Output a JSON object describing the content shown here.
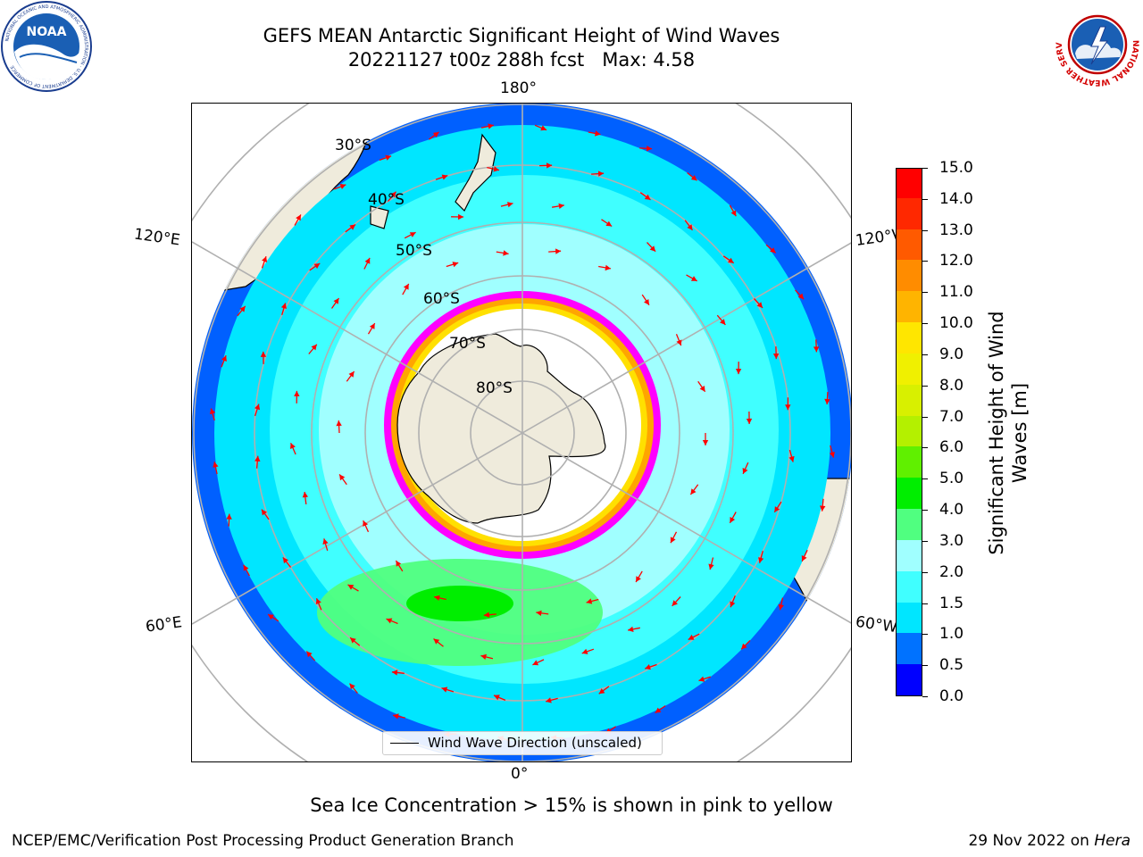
{
  "title": {
    "line1": "GEFS MEAN Antarctic Significant Height of Wind Waves",
    "line2": "20221127 t00z 288h fcst   Max: 4.58"
  },
  "map": {
    "projection": "south-polar stereographic",
    "longitude_labels": {
      "top": "180°",
      "bottom": "0°",
      "upper_left": "120°E",
      "upper_right": "120°W",
      "lower_left": "60°E",
      "lower_right": "60°W"
    },
    "latitude_labels": [
      "30°S",
      "40°S",
      "50°S",
      "60°S",
      "70°S",
      "80°S"
    ],
    "legend_entry": "Wind Wave Direction (unscaled)",
    "arrow_color": "#ff0000",
    "land_color": "#efebdc",
    "ice_color": "#ffffff",
    "ice_edge_colors": [
      "#ff00ff",
      "#ffa500",
      "#ffe000"
    ]
  },
  "colorbar": {
    "label_line1": "Significant Height of Wind",
    "label_line2": "Waves [m]",
    "ticks": [
      "0.0",
      "0.5",
      "1.0",
      "1.5",
      "2.0",
      "3.0",
      "4.0",
      "5.0",
      "6.0",
      "7.0",
      "8.0",
      "9.0",
      "10.0",
      "11.0",
      "12.0",
      "13.0",
      "14.0",
      "15.0"
    ],
    "colors": [
      "#0000ff",
      "#0072ff",
      "#00e6ff",
      "#40ffff",
      "#a0ffff",
      "#50ff80",
      "#00ee00",
      "#60f000",
      "#b4f000",
      "#d8f000",
      "#f0f000",
      "#ffe600",
      "#ffb400",
      "#ff8c00",
      "#ff5a00",
      "#ff2800",
      "#ff0000"
    ]
  },
  "subtitle": "Sea Ice Concentration > 15% is shown in pink to yellow",
  "footer": {
    "left": "NCEP/EMC/Verification Post Processing Product Generation Branch",
    "right_date": "29 Nov 2022 on ",
    "right_host": "Hera"
  },
  "logos": {
    "noaa_text": "NOAA",
    "noaa_ring_text": "NATIONAL OCEANIC AND ATMOSPHERIC ADMINISTRATION · U.S. DEPARTMENT OF COMMERCE",
    "nws_ring_text": "NATIONAL WEATHER SERVICE"
  }
}
